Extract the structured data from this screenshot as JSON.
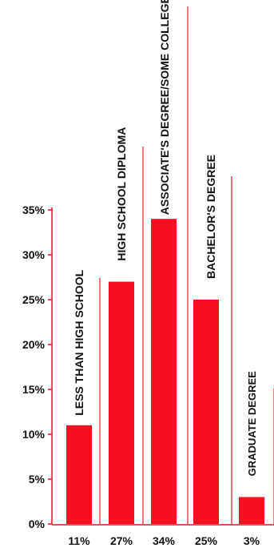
{
  "chart_data": {
    "type": "bar",
    "title": "",
    "xlabel": "",
    "ylabel": "",
    "categories": [
      "LESS THAN HIGH SCHOOL",
      "HIGH SCHOOL DIPLOMA",
      "ASSOCIATE'S DEGREE/SOME COLLEGE",
      "BACHELOR'S DEGREE",
      "GRADUATE DEGREE"
    ],
    "values": [
      11,
      27,
      34,
      25,
      3
    ],
    "value_labels": [
      "11%",
      "27%",
      "34%",
      "25%",
      "3%"
    ],
    "y_ticks": [
      "0%",
      "5%",
      "10%",
      "15%",
      "20%",
      "25%",
      "30%",
      "35%"
    ],
    "ylim": [
      0,
      35
    ],
    "grid": false,
    "legend": "none",
    "colors": {
      "bar": "#f50f1f",
      "axis": "#e8102a",
      "text": "#111111"
    }
  }
}
